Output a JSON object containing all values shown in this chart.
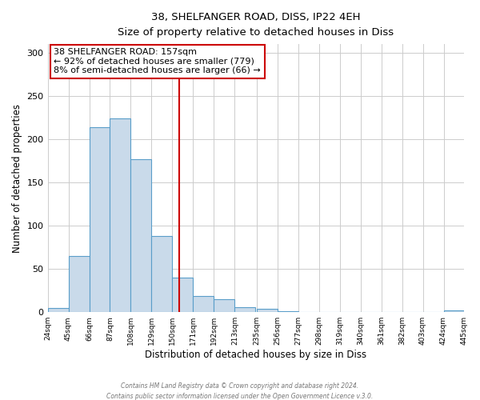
{
  "title": "38, SHELFANGER ROAD, DISS, IP22 4EH",
  "subtitle": "Size of property relative to detached houses in Diss",
  "xlabel": "Distribution of detached houses by size in Diss",
  "ylabel": "Number of detached properties",
  "bar_left_edges": [
    24,
    45,
    66,
    87,
    108,
    129,
    150,
    171,
    192,
    213,
    235,
    256,
    277,
    298,
    319,
    340,
    361,
    382,
    403,
    424
  ],
  "bar_heights": [
    5,
    65,
    214,
    224,
    177,
    88,
    40,
    19,
    15,
    6,
    4,
    1,
    0,
    0,
    0,
    0,
    0,
    0,
    0,
    2
  ],
  "bin_width": 21,
  "bar_color": "#c9daea",
  "bar_edge_color": "#5a9ec9",
  "vline_x": 157,
  "vline_color": "#cc0000",
  "ylim": [
    0,
    310
  ],
  "xlim": [
    24,
    445
  ],
  "tick_labels": [
    "24sqm",
    "45sqm",
    "66sqm",
    "87sqm",
    "108sqm",
    "129sqm",
    "150sqm",
    "171sqm",
    "192sqm",
    "213sqm",
    "235sqm",
    "256sqm",
    "277sqm",
    "298sqm",
    "319sqm",
    "340sqm",
    "361sqm",
    "382sqm",
    "403sqm",
    "424sqm",
    "445sqm"
  ],
  "tick_positions": [
    24,
    45,
    66,
    87,
    108,
    129,
    150,
    171,
    192,
    213,
    235,
    256,
    277,
    298,
    319,
    340,
    361,
    382,
    403,
    424,
    445
  ],
  "annotation_title": "38 SHELFANGER ROAD: 157sqm",
  "annotation_line1": "← 92% of detached houses are smaller (779)",
  "annotation_line2": "8% of semi-detached houses are larger (66) →",
  "annotation_box_color": "#ffffff",
  "annotation_box_edge_color": "#cc0000",
  "footer1": "Contains HM Land Registry data © Crown copyright and database right 2024.",
  "footer2": "Contains public sector information licensed under the Open Government Licence v.3.0.",
  "background_color": "#ffffff",
  "grid_color": "#cccccc",
  "yticks": [
    0,
    50,
    100,
    150,
    200,
    250,
    300
  ]
}
